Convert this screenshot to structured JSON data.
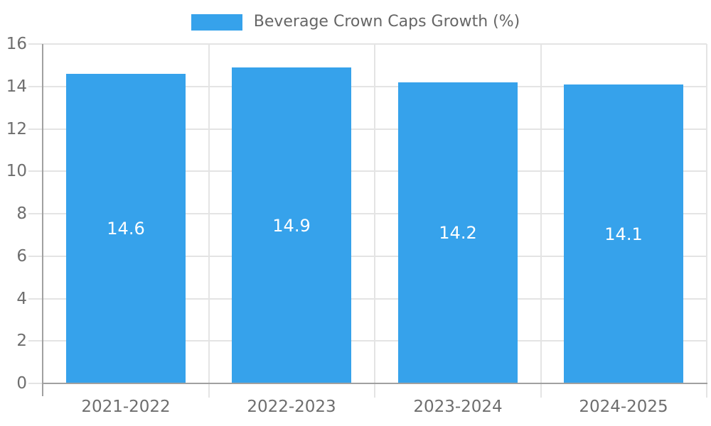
{
  "chart_data": {
    "type": "bar",
    "title": "",
    "legend": {
      "label": "Beverage Crown Caps Growth (%)",
      "position": "top"
    },
    "categories": [
      "2021-2022",
      "2022-2023",
      "2023-2024",
      "2024-2025"
    ],
    "series": [
      {
        "name": "Beverage Crown Caps Growth (%)",
        "values": [
          14.6,
          14.9,
          14.2,
          14.1
        ]
      }
    ],
    "value_labels": [
      "14.6",
      "14.9",
      "14.2",
      "14.1"
    ],
    "xlabel": "",
    "ylabel": "",
    "ylim": [
      0,
      16
    ],
    "ytick_step": 2,
    "yticks": [
      0,
      2,
      4,
      6,
      8,
      10,
      12,
      14,
      16
    ],
    "grid": true,
    "legend_position": "top",
    "colors": {
      "bar": "#36A2EB",
      "bar_value_text": "#FFFFFF",
      "axis_text": "#6E6E6E",
      "legend_text": "#666666",
      "gridline": "#E4E4E4",
      "axis_border": "#A0A0A0",
      "background": "#FFFFFF"
    }
  }
}
